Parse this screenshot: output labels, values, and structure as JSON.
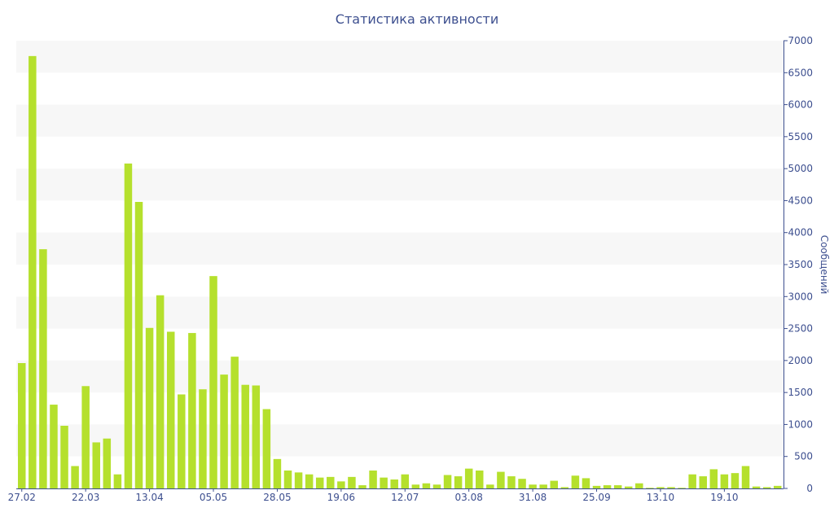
{
  "chart_data": {
    "type": "bar",
    "title": "Статистика активности",
    "ylabel": "Сообщений",
    "xlabel": "",
    "ylim": [
      0,
      7000
    ],
    "y_ticks": [
      0,
      500,
      1000,
      1500,
      2000,
      2500,
      3000,
      3500,
      4000,
      4500,
      5000,
      5500,
      6000,
      6500,
      7000
    ],
    "y_axis_side": "right",
    "grid": "alternating horizontal bands",
    "x_tick_labels": [
      {
        "label": "27.02",
        "index": 0
      },
      {
        "label": "22.03",
        "index": 6
      },
      {
        "label": "13.04",
        "index": 12
      },
      {
        "label": "05.05",
        "index": 18
      },
      {
        "label": "28.05",
        "index": 24
      },
      {
        "label": "19.06",
        "index": 30
      },
      {
        "label": "12.07",
        "index": 36
      },
      {
        "label": "03.08",
        "index": 42
      },
      {
        "label": "31.08",
        "index": 48
      },
      {
        "label": "25.09",
        "index": 54
      },
      {
        "label": "13.10",
        "index": 60
      },
      {
        "label": "19.10",
        "index": 66
      }
    ],
    "values": [
      1960,
      6760,
      3740,
      1310,
      980,
      350,
      1600,
      720,
      780,
      220,
      5080,
      4480,
      2510,
      3020,
      2450,
      1470,
      2430,
      1550,
      3320,
      1780,
      2060,
      1620,
      1610,
      1240,
      460,
      280,
      250,
      220,
      170,
      180,
      110,
      180,
      50,
      280,
      170,
      140,
      220,
      60,
      80,
      60,
      210,
      190,
      310,
      280,
      60,
      260,
      190,
      150,
      60,
      60,
      120,
      20,
      200,
      160,
      40,
      50,
      50,
      30,
      80,
      10,
      20,
      20,
      10,
      220,
      190,
      300,
      220,
      240,
      350,
      30,
      20,
      40
    ],
    "bar_color": "#b5e02d",
    "text_color": "#3d4f8f"
  }
}
